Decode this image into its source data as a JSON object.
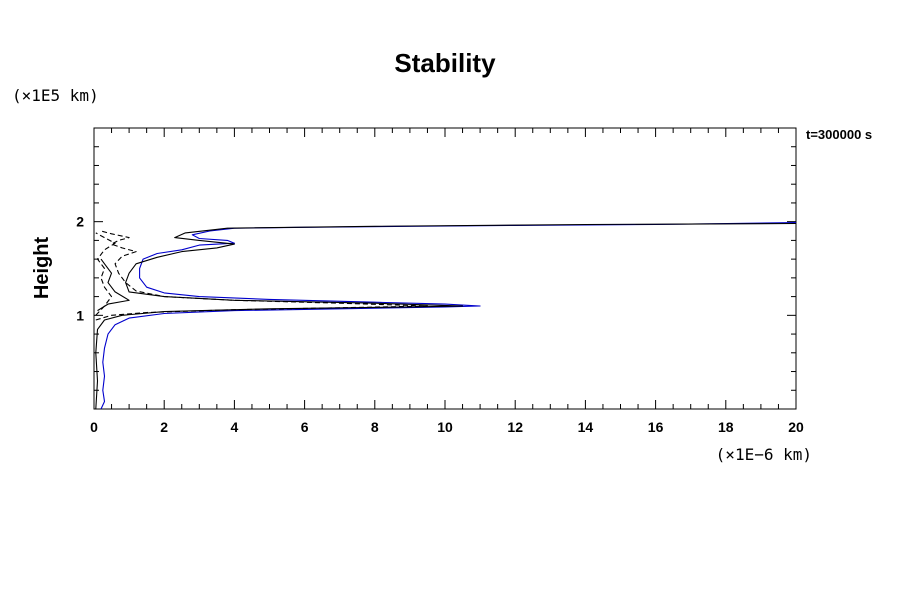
{
  "chart_data": {
    "type": "line",
    "title": "Stability",
    "xlabel": "",
    "ylabel": "Height",
    "x_unit": "(×1E−6 km)",
    "y_unit": "(×1E5 km)",
    "time_label": "t=300000 s",
    "xlim": [
      0,
      20
    ],
    "ylim": [
      0,
      3
    ],
    "x_major_ticks": [
      0,
      2,
      4,
      6,
      8,
      10,
      12,
      14,
      16,
      18,
      20
    ],
    "y_major_ticks": [
      1,
      2
    ],
    "grid": false,
    "colors": {
      "blue": "#0000cc",
      "black": "#000000"
    },
    "series": [
      {
        "color": "#0000cc",
        "style": "solid",
        "points": [
          [
            0.2,
            0.0
          ],
          [
            0.3,
            0.08
          ],
          [
            0.25,
            0.2
          ],
          [
            0.3,
            0.35
          ],
          [
            0.25,
            0.5
          ],
          [
            0.3,
            0.65
          ],
          [
            0.4,
            0.8
          ],
          [
            0.6,
            0.9
          ],
          [
            1.0,
            0.97
          ],
          [
            2.0,
            1.02
          ],
          [
            4.0,
            1.05
          ],
          [
            7.0,
            1.07
          ],
          [
            10.0,
            1.09
          ],
          [
            11.0,
            1.1
          ],
          [
            10.0,
            1.12
          ],
          [
            8.0,
            1.14
          ],
          [
            5.0,
            1.17
          ],
          [
            3.0,
            1.2
          ],
          [
            2.0,
            1.24
          ],
          [
            1.5,
            1.3
          ],
          [
            1.3,
            1.4
          ],
          [
            1.3,
            1.5
          ],
          [
            1.4,
            1.6
          ],
          [
            1.8,
            1.66
          ],
          [
            2.5,
            1.7
          ],
          [
            3.0,
            1.75
          ],
          [
            4.0,
            1.77
          ],
          [
            3.8,
            1.8
          ],
          [
            3.0,
            1.82
          ],
          [
            2.8,
            1.86
          ],
          [
            3.3,
            1.9
          ],
          [
            4.0,
            1.93
          ],
          [
            6.0,
            1.94
          ],
          [
            12.0,
            1.96
          ],
          [
            16.0,
            1.97
          ],
          [
            20.0,
            1.99
          ]
        ]
      },
      {
        "color": "#000000",
        "style": "solid",
        "points": [
          [
            0.05,
            0.0
          ],
          [
            0.1,
            0.3
          ],
          [
            0.05,
            0.6
          ],
          [
            0.1,
            0.85
          ],
          [
            0.3,
            0.95
          ],
          [
            0.8,
            1.0
          ],
          [
            2.0,
            1.04
          ],
          [
            5.0,
            1.07
          ],
          [
            9.0,
            1.09
          ],
          [
            10.5,
            1.1
          ],
          [
            8.0,
            1.13
          ],
          [
            4.0,
            1.16
          ],
          [
            2.0,
            1.2
          ],
          [
            1.0,
            1.25
          ],
          [
            0.9,
            1.35
          ],
          [
            1.0,
            1.45
          ],
          [
            1.2,
            1.55
          ],
          [
            1.8,
            1.62
          ],
          [
            2.5,
            1.68
          ],
          [
            3.5,
            1.72
          ],
          [
            4.0,
            1.76
          ],
          [
            3.0,
            1.8
          ],
          [
            2.3,
            1.83
          ],
          [
            2.6,
            1.88
          ],
          [
            3.8,
            1.93
          ],
          [
            8.0,
            1.95
          ],
          [
            14.0,
            1.97
          ],
          [
            20.0,
            1.98
          ]
        ]
      },
      {
        "color": "#000000",
        "style": "dashed",
        "points": [
          [
            0.05,
            0.95
          ],
          [
            0.5,
            1.0
          ],
          [
            1.5,
            1.03
          ],
          [
            4.0,
            1.06
          ],
          [
            7.0,
            1.08
          ],
          [
            9.5,
            1.1
          ],
          [
            7.0,
            1.13
          ],
          [
            4.0,
            1.16
          ],
          [
            2.0,
            1.2
          ],
          [
            1.2,
            1.26
          ],
          [
            0.9,
            1.35
          ],
          [
            0.7,
            1.45
          ],
          [
            0.6,
            1.55
          ],
          [
            0.8,
            1.63
          ],
          [
            1.2,
            1.68
          ],
          [
            0.8,
            1.72
          ],
          [
            0.5,
            1.76
          ],
          [
            0.7,
            1.8
          ],
          [
            1.0,
            1.83
          ],
          [
            0.5,
            1.87
          ],
          [
            0.2,
            1.9
          ]
        ]
      },
      {
        "color": "#000000",
        "style": "dashed",
        "points": [
          [
            0.05,
            1.0
          ],
          [
            0.3,
            1.1
          ],
          [
            0.5,
            1.2
          ],
          [
            0.3,
            1.3
          ],
          [
            0.2,
            1.4
          ],
          [
            0.3,
            1.5
          ],
          [
            0.1,
            1.6
          ],
          [
            0.3,
            1.7
          ],
          [
            0.6,
            1.77
          ],
          [
            0.3,
            1.83
          ],
          [
            0.05,
            1.88
          ]
        ]
      },
      {
        "color": "#000000",
        "style": "solid",
        "points": [
          [
            0.1,
            1.05
          ],
          [
            0.4,
            1.12
          ],
          [
            1.0,
            1.16
          ],
          [
            0.6,
            1.25
          ],
          [
            0.4,
            1.35
          ],
          [
            0.5,
            1.45
          ],
          [
            0.3,
            1.55
          ],
          [
            0.2,
            1.6
          ]
        ]
      }
    ]
  }
}
